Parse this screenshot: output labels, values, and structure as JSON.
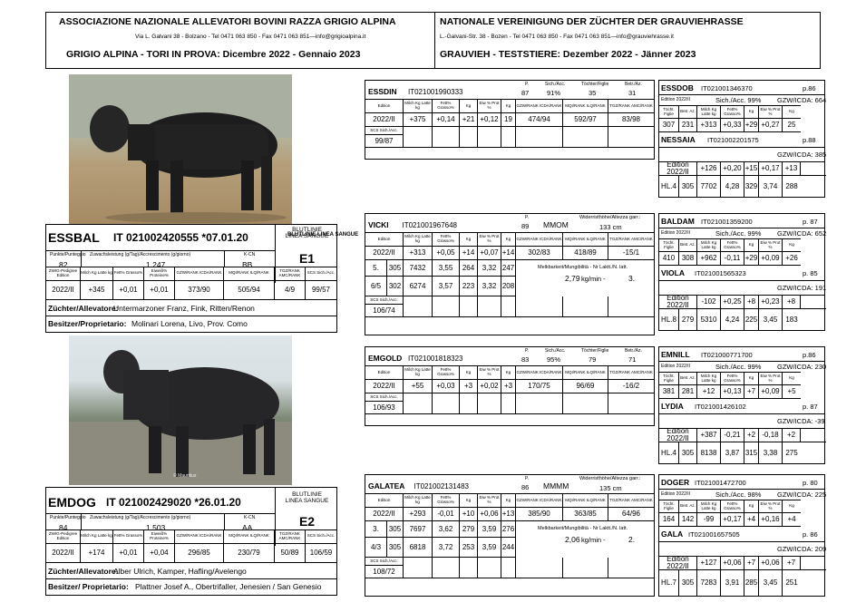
{
  "header": {
    "assoc_it": "ASSOCIAZIONE NAZIONALE ALLEVATORI BOVINI RAZZA GRIGIO ALPINA",
    "addr_it": "Via L. Galvani 38 - Bolzano - Tel 0471 063 850 - Fax  0471 063 851—info@grigioalpina.it",
    "title_it": "GRIGIO ALPINA - TORI IN PROVA: Dicembre 2022 - Gennaio 2023",
    "assoc_de": "NATIONALE VEREINIGUNG DER ZÜCHTER DER GRAUVIEHRASSE",
    "addr_de": "L.-Galvani-Str. 38 - Bozen - Tel 0471 063 850 - Fax  0471 063 851—info@grauviehrasse.it",
    "title_de": "GRAUVIEH - TESTSTIERE:  Dezember 2022 - Jänner 2023"
  },
  "labels": {
    "edition": "Edition",
    "milch": "Milch Kg Latte kg",
    "fett": "Fett% Grasso%",
    "kg": "Kg",
    "eiw": "Eiw % Prot %",
    "gzw": "GZW/RANK ICDA/RANK",
    "mqi": "MQI/RANK ILQ/RANK",
    "tgz": "TGZ/RANK AMC/RANK",
    "scs": "SCS Sich./Acc.",
    "sich": "Sich./Acc.",
    "tochter": "Töchter/Figlie",
    "betr": "Betr./Az.",
    "p": "P.",
    "punkte": "Punkte/Punteggio",
    "zuw": "Zuwachsleistung (g/Tag)/Accrescimento (g/giorno)",
    "kcn": "K-CN",
    "zwig": "ZWIG-Pedigree Edition",
    "eiwp": "Eiweiß% Proteine%",
    "blut": "BLUTLINIE LINEA SANGUE",
    "tocht": "Töcht. Figlie",
    "betr_az": "Betr. Az.",
    "gzw_icda": "GZW/ICDA:",
    "edition_line": "Edition 2022/II",
    "wider": "Widerristhöhe/Altezza garr.:",
    "melk": "Melkbarkeit/Mungibilità - Nr Laktt./N. latt.",
    "kgmin": "kg/min -",
    "breeder": "Züchter/Allevatore:",
    "owner_a": "Besitzer/Proprietario:",
    "owner_b": "Besitzer/ Proprietario:"
  },
  "essbal": {
    "name": "ESSBAL",
    "id": "IT 021002420555 *07.01.20",
    "punkte": "82",
    "zuw": "1.247",
    "kcn": "BB",
    "blut": "E1",
    "row": [
      "2022/II",
      "+345",
      "+0,01",
      "+0,01",
      "373/90",
      "505/94",
      "4/9",
      "99/57"
    ],
    "breeder": "Untermarzoner Franz, Fink, Ritten/Renon",
    "owner": "Molinari Lorena, Livo, Prov. Como"
  },
  "emdog": {
    "name": "EMDOG",
    "id": "IT 021002429020 *26.01.20",
    "punkte": "84",
    "zuw": "1.503",
    "kcn": "AA",
    "blut": "E2",
    "row": [
      "2022/II",
      "+174",
      "+0,01",
      "+0,04",
      "296/85",
      "230/79",
      "50/89",
      "106/59"
    ],
    "breeder": "Alber Ulrich, Kamper, Hafling/Avelengo",
    "owner": "Plattner Josef A., Obertrifaller, Jenesien / San Genesio"
  },
  "essdin": {
    "name": "ESSDIN",
    "id": "IT021001990333",
    "p": "87",
    "sich": "91%",
    "tochter": "35",
    "betr": "31",
    "row": [
      "2022/II",
      "+375",
      "+0,14",
      "+21",
      "+0,12",
      "19",
      "474/94",
      "592/97",
      "83/98"
    ],
    "scs": "99/87"
  },
  "vicki": {
    "name": "VICKI",
    "id": "IT021001967648",
    "p": "89",
    "mm": "MMOM",
    "height": "133 cm",
    "row": [
      "2022/II",
      "+313",
      "+0,05",
      "+14",
      "+0,07",
      "+14",
      "302/83",
      "418/89",
      "-15/1"
    ],
    "lact": [
      [
        "5.",
        "305",
        "7432",
        "3,55",
        "264",
        "3,32",
        "247"
      ],
      [
        "6/5",
        "302",
        "6274",
        "3,57",
        "223",
        "3,32",
        "208"
      ]
    ],
    "melk": "2,79",
    "nr": "3.",
    "scs": "106/74"
  },
  "emgold": {
    "name": "EMGOLD",
    "id": "IT021001818323",
    "p": "83",
    "sich": "95%",
    "tochter": "79",
    "betr": "71",
    "row": [
      "2022/II",
      "+55",
      "+0,03",
      "+3",
      "+0,02",
      "+3",
      "170/75",
      "96/69",
      "-16/2"
    ],
    "scs": "106/93"
  },
  "galatea": {
    "name": "GALATEA",
    "id": "IT021002131483",
    "p": "86",
    "mm": "MMMM",
    "height": "135 cm",
    "row": [
      "2022/II",
      "+293",
      "-0,01",
      "+10",
      "+0,06",
      "+13",
      "385/90",
      "363/85",
      "64/96"
    ],
    "lact": [
      [
        "3.",
        "305",
        "7697",
        "3,62",
        "279",
        "3,59",
        "276"
      ],
      [
        "4/3",
        "305",
        "6818",
        "3,72",
        "253",
        "3,59",
        "244"
      ]
    ],
    "melk": "2,06",
    "nr": "2.",
    "scs": "108/72"
  },
  "right": [
    {
      "sire": "ESSDOB",
      "sire_id": "IT021001346370",
      "sire_p": "p.86",
      "sich": "99%",
      "gzw": "664",
      "srow": [
        "307",
        "231",
        "+313",
        "+0,33",
        "+29",
        "+0,27",
        "25"
      ],
      "dam": "NESSAIA",
      "dam_id": "IT021002201575",
      "dam_p": "p.88",
      "dgzw": "385",
      "ed": [
        "",
        "+126",
        "+0,20",
        "+15",
        "+0,17",
        "+13"
      ],
      "hl": [
        "HL.4",
        "305",
        "7702",
        "4,28",
        "329",
        "3,74",
        "288"
      ]
    },
    {
      "sire": "BALDAM",
      "sire_id": "IT021001359200",
      "sire_p": "p. 87",
      "sich": "99%",
      "gzw": "652",
      "srow": [
        "410",
        "308",
        "+962",
        "-0,11",
        "+29",
        "+0,09",
        "+26"
      ],
      "dam": "VIOLA",
      "dam_id": "IT021001565323",
      "dam_p": "p. 85",
      "dgzw": "191",
      "ed": [
        "",
        "-102",
        "+0,25",
        "+8",
        "+0,23",
        "+8"
      ],
      "hl": [
        "HL.8",
        "279",
        "5310",
        "4,24",
        "225",
        "3,45",
        "183"
      ]
    },
    {
      "sire": "EMNILL",
      "sire_id": "IT021000771700",
      "sire_p": "p.86",
      "sich": "99%",
      "gzw": "230",
      "srow": [
        "381",
        "281",
        "+12",
        "+0,13",
        "+7",
        "+0,09",
        "+5"
      ],
      "dam": "LYDIA",
      "dam_id": "IT021001426102",
      "dam_p": "p. 87",
      "dgzw": "-39",
      "ed": [
        "",
        "+387",
        "-0,21",
        "+2",
        "-0,18",
        "+2"
      ],
      "hl": [
        "HL.4",
        "305",
        "8138",
        "3,87",
        "315",
        "3,38",
        "275"
      ]
    },
    {
      "sire": "DOGER",
      "sire_id": "IT021001472700",
      "sire_p": "p. 80",
      "sich": "98%",
      "gzw": "225",
      "srow": [
        "164",
        "142",
        "-99",
        "+0,17",
        "+4",
        "+0,16",
        "+4"
      ],
      "dam": "GALA",
      "dam_id": "IT021001657505",
      "dam_p": "p. 86",
      "dgzw": "209",
      "ed": [
        "",
        "+127",
        "+0,06",
        "+7",
        "+0,06",
        "+7"
      ],
      "hl": [
        "HL.7",
        "305",
        "7283",
        "3,91",
        "285",
        "3,45",
        "251"
      ]
    }
  ],
  "photo_credit": "© Mauritius"
}
